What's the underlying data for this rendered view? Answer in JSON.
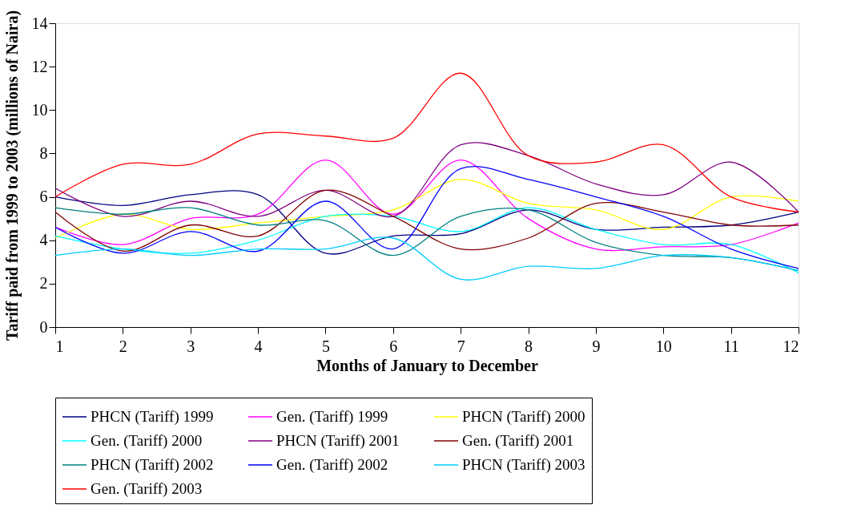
{
  "chart_data": {
    "type": "line",
    "xlabel": "Months of January to December",
    "ylabel": "Tariff paid from 1999 to 2003 (millions of Naira)",
    "x": [
      1,
      2,
      3,
      4,
      5,
      6,
      7,
      8,
      9,
      10,
      11,
      12
    ],
    "xlim": [
      1,
      12
    ],
    "xticks": [
      1,
      2,
      3,
      4,
      5,
      6,
      7,
      8,
      9,
      10,
      11,
      12
    ],
    "ylim": [
      0,
      14
    ],
    "yticks": [
      0,
      2,
      4,
      6,
      8,
      10,
      12,
      14
    ],
    "grid": false,
    "legend": "bottom",
    "marker": "none",
    "line_style": "solid",
    "series": [
      {
        "name": "PHCN (Tariff) 1999",
        "color": "#000080",
        "values": [
          6.0,
          5.6,
          6.1,
          6.1,
          3.4,
          4.2,
          4.3,
          5.4,
          4.5,
          4.6,
          4.7,
          5.3
        ]
      },
      {
        "name": "Gen. (Tariff) 1999",
        "color": "#ff00ff",
        "values": [
          4.6,
          3.8,
          5.0,
          5.2,
          7.7,
          5.2,
          7.7,
          5.0,
          3.6,
          3.7,
          3.8,
          4.8
        ]
      },
      {
        "name": "PHCN (Tariff) 2000",
        "color": "#ffff00",
        "values": [
          4.1,
          5.2,
          4.5,
          4.8,
          5.1,
          5.4,
          6.8,
          5.7,
          5.4,
          4.5,
          6.0,
          5.8
        ]
      },
      {
        "name": "Gen. (Tariff) 2000",
        "color": "#00ffff",
        "values": [
          4.2,
          3.6,
          3.4,
          4.0,
          5.1,
          5.1,
          4.4,
          5.5,
          4.5,
          3.8,
          3.8,
          2.5
        ]
      },
      {
        "name": "PHCN (Tariff) 2001",
        "color": "#800080",
        "values": [
          6.4,
          5.1,
          5.8,
          5.1,
          6.3,
          5.1,
          8.4,
          7.9,
          6.6,
          6.1,
          7.6,
          5.3
        ]
      },
      {
        "name": "Gen. (Tariff) 2001",
        "color": "#800000",
        "values": [
          5.3,
          3.5,
          4.7,
          4.2,
          6.3,
          5.1,
          3.6,
          4.1,
          5.7,
          5.3,
          4.7,
          4.7
        ]
      },
      {
        "name": "PHCN (Tariff) 2002",
        "color": "#008080",
        "values": [
          5.5,
          5.2,
          5.5,
          4.7,
          4.9,
          3.3,
          5.1,
          5.4,
          3.9,
          3.3,
          3.2,
          2.6
        ]
      },
      {
        "name": "Gen. (Tariff) 2002",
        "color": "#0000ff",
        "values": [
          4.6,
          3.4,
          4.4,
          3.5,
          5.8,
          3.6,
          7.3,
          6.8,
          6.0,
          5.1,
          3.6,
          2.7
        ]
      },
      {
        "name": "PHCN (Tariff) 2003",
        "color": "#00ccff",
        "values": [
          3.3,
          3.6,
          3.3,
          3.6,
          3.6,
          4.1,
          2.2,
          2.8,
          2.7,
          3.3,
          3.2,
          2.6
        ]
      },
      {
        "name": "Gen. (Tariff) 2003",
        "color": "#ff0000",
        "values": [
          6.0,
          7.5,
          7.5,
          8.9,
          8.8,
          8.7,
          11.7,
          7.9,
          7.6,
          8.4,
          6.0,
          5.3
        ]
      }
    ]
  }
}
